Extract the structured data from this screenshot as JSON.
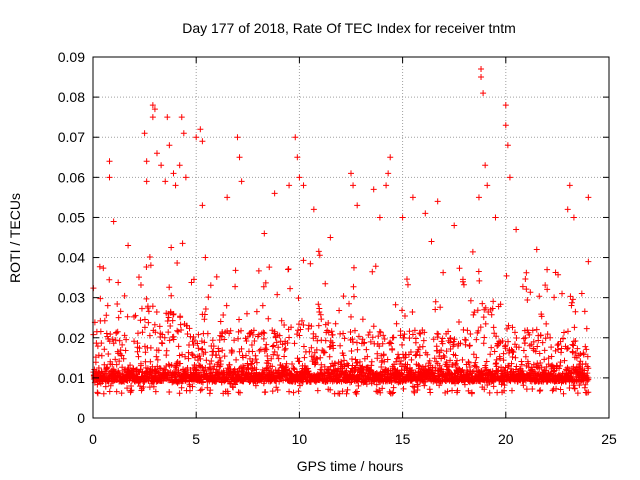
{
  "chart_data": {
    "type": "scatter",
    "title": "Day 177 of 2018, Rate Of TEC Index for receiver tntm",
    "xlabel": "GPS time / hours",
    "ylabel": "ROTI / TECUs",
    "xlim": [
      0,
      25
    ],
    "ylim": [
      0,
      0.09
    ],
    "x_ticks": [
      0,
      5,
      10,
      15,
      20,
      25
    ],
    "x_tick_labels": [
      "0",
      "5",
      "10",
      "15",
      "20",
      "25"
    ],
    "y_ticks": [
      0,
      0.01,
      0.02,
      0.03,
      0.04,
      0.05,
      0.06,
      0.07,
      0.08,
      0.09
    ],
    "y_tick_labels": [
      "0",
      "0.01",
      "0.02",
      "0.03",
      "0.04",
      "0.05",
      "0.06",
      "0.07",
      "0.08",
      "0.09"
    ],
    "grid": true,
    "marker": "+",
    "series": [
      {
        "name": "ROTI",
        "color": "#ff0000",
        "points": [
          [
            0.8,
            0.064
          ],
          [
            0.8,
            0.06
          ],
          [
            1.0,
            0.049
          ],
          [
            1.7,
            0.043
          ],
          [
            2.5,
            0.071
          ],
          [
            2.6,
            0.064
          ],
          [
            2.6,
            0.059
          ],
          [
            2.9,
            0.078
          ],
          [
            2.9,
            0.075
          ],
          [
            3.0,
            0.077
          ],
          [
            3.1,
            0.066
          ],
          [
            3.3,
            0.063
          ],
          [
            3.5,
            0.059
          ],
          [
            3.6,
            0.075
          ],
          [
            3.7,
            0.068
          ],
          [
            3.9,
            0.061
          ],
          [
            4.0,
            0.058
          ],
          [
            4.2,
            0.063
          ],
          [
            4.3,
            0.075
          ],
          [
            4.4,
            0.071
          ],
          [
            4.5,
            0.06
          ],
          [
            5.0,
            0.07
          ],
          [
            5.2,
            0.072
          ],
          [
            5.3,
            0.069
          ],
          [
            5.3,
            0.053
          ],
          [
            6.5,
            0.055
          ],
          [
            7.0,
            0.07
          ],
          [
            7.1,
            0.065
          ],
          [
            7.2,
            0.059
          ],
          [
            8.3,
            0.046
          ],
          [
            8.8,
            0.056
          ],
          [
            9.5,
            0.058
          ],
          [
            9.8,
            0.07
          ],
          [
            9.9,
            0.065
          ],
          [
            10.0,
            0.06
          ],
          [
            10.2,
            0.058
          ],
          [
            10.7,
            0.052
          ],
          [
            11.5,
            0.045
          ],
          [
            12.5,
            0.061
          ],
          [
            12.6,
            0.058
          ],
          [
            12.8,
            0.053
          ],
          [
            13.6,
            0.057
          ],
          [
            13.9,
            0.05
          ],
          [
            14.2,
            0.058
          ],
          [
            14.3,
            0.061
          ],
          [
            14.4,
            0.065
          ],
          [
            15.0,
            0.05
          ],
          [
            15.5,
            0.055
          ],
          [
            16.1,
            0.051
          ],
          [
            16.4,
            0.044
          ],
          [
            16.7,
            0.054
          ],
          [
            17.5,
            0.048
          ],
          [
            18.8,
            0.087
          ],
          [
            18.8,
            0.085
          ],
          [
            18.9,
            0.081
          ],
          [
            19.0,
            0.063
          ],
          [
            19.1,
            0.058
          ],
          [
            18.7,
            0.055
          ],
          [
            19.5,
            0.05
          ],
          [
            20.0,
            0.078
          ],
          [
            20.0,
            0.073
          ],
          [
            20.1,
            0.068
          ],
          [
            20.2,
            0.06
          ],
          [
            20.5,
            0.047
          ],
          [
            21.5,
            0.042
          ],
          [
            22.0,
            0.037
          ],
          [
            23.0,
            0.052
          ],
          [
            23.1,
            0.058
          ],
          [
            23.3,
            0.05
          ],
          [
            24.0,
            0.055
          ],
          [
            24.0,
            0.039
          ]
        ],
        "band_note": "dense cluster of thousands of points between ~0.002 and ~0.035 across 0–24 h"
      }
    ]
  }
}
